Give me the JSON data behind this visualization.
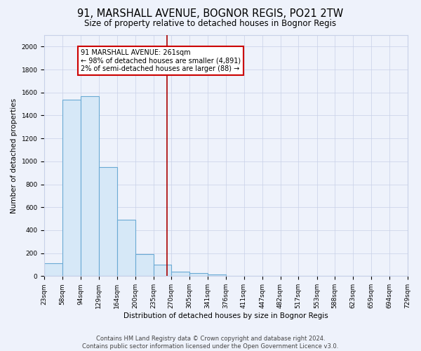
{
  "title": "91, MARSHALL AVENUE, BOGNOR REGIS, PO21 2TW",
  "subtitle": "Size of property relative to detached houses in Bognor Regis",
  "xlabel": "Distribution of detached houses by size in Bognor Regis",
  "ylabel": "Number of detached properties",
  "bar_edges": [
    23,
    58,
    94,
    129,
    164,
    200,
    235,
    270,
    305,
    341,
    376,
    411,
    447,
    482,
    517,
    553,
    588,
    623,
    659,
    694,
    729
  ],
  "bar_heights": [
    110,
    1540,
    1570,
    950,
    490,
    190,
    100,
    40,
    25,
    15,
    5,
    5,
    5,
    0,
    5,
    0,
    0,
    0,
    0,
    0
  ],
  "bar_color": "#d6e8f7",
  "bar_edge_color": "#6aaad4",
  "property_line_x": 261,
  "property_line_color": "#aa0000",
  "annotation_text": "91 MARSHALL AVENUE: 261sqm\n← 98% of detached houses are smaller (4,891)\n2% of semi-detached houses are larger (88) →",
  "annotation_box_color": "#ffffff",
  "annotation_box_edge": "#cc0000",
  "ylim": [
    0,
    2100
  ],
  "yticks": [
    0,
    200,
    400,
    600,
    800,
    1000,
    1200,
    1400,
    1600,
    1800,
    2000
  ],
  "footer": "Contains HM Land Registry data © Crown copyright and database right 2024.\nContains public sector information licensed under the Open Government Licence v3.0.",
  "background_color": "#eef2fb",
  "grid_color": "#c8d0e8",
  "title_fontsize": 10.5,
  "subtitle_fontsize": 8.5,
  "axis_label_fontsize": 7.5,
  "tick_fontsize": 6.5,
  "footer_fontsize": 6,
  "annotation_fontsize": 7
}
